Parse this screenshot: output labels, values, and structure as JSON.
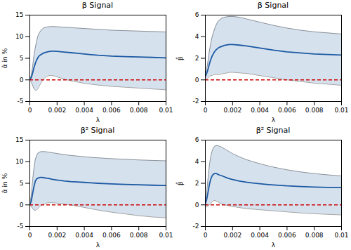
{
  "chart_data": [
    {
      "type": "line",
      "title": "β Signal",
      "xlabel": "λ",
      "ylabel": "α̂ in %",
      "x": [
        0,
        0.0001,
        0.0002,
        0.0003,
        0.0004,
        0.0005,
        0.0006,
        0.0007,
        0.0008,
        0.0009,
        0.001,
        0.0012,
        0.0014,
        0.0016,
        0.0018,
        0.002,
        0.0025,
        0.003,
        0.0035,
        0.004,
        0.0045,
        0.005,
        0.006,
        0.007,
        0.008,
        0.009,
        0.01
      ],
      "values": [
        0.1,
        0.5,
        1.5,
        2.8,
        3.8,
        4.6,
        5.2,
        5.6,
        5.8,
        6.0,
        6.2,
        6.4,
        6.55,
        6.65,
        6.65,
        6.6,
        6.45,
        6.3,
        6.15,
        6.0,
        5.85,
        5.7,
        5.5,
        5.4,
        5.3,
        5.2,
        5.1
      ],
      "upper": [
        0.2,
        1.0,
        3.0,
        5.5,
        7.5,
        9.0,
        10.2,
        10.9,
        11.4,
        11.7,
        12.0,
        12.2,
        12.3,
        12.35,
        12.35,
        12.3,
        12.2,
        12.1,
        12.0,
        11.9,
        11.8,
        11.7,
        11.5,
        11.4,
        11.3,
        11.2,
        11.1
      ],
      "lower": [
        -0.1,
        -0.5,
        -1.2,
        -2.0,
        -2.4,
        -2.4,
        -2.0,
        -1.4,
        -0.8,
        -0.3,
        0.2,
        0.7,
        1.0,
        1.0,
        0.9,
        0.7,
        0.2,
        -0.2,
        -0.5,
        -0.8,
        -1.0,
        -1.2,
        -1.5,
        -1.7,
        -1.9,
        -2.1,
        -2.3
      ],
      "color": "#1c5aa3",
      "hline": {
        "y": 0,
        "color": "#cc0000",
        "line_style": "dashed"
      },
      "xlim": [
        0,
        0.01
      ],
      "xticks": [
        0,
        0.002,
        0.004,
        0.006,
        0.008,
        0.01
      ],
      "ylim": [
        -5,
        15
      ],
      "yticks": [
        -5,
        0,
        5,
        10,
        15
      ],
      "grid": false
    },
    {
      "type": "line",
      "title": "β Signal",
      "xlabel": "λ",
      "ylabel": "β̂",
      "x": [
        0,
        0.0001,
        0.0002,
        0.0003,
        0.0004,
        0.0005,
        0.0006,
        0.0007,
        0.0008,
        0.0009,
        0.001,
        0.0012,
        0.0014,
        0.0016,
        0.0018,
        0.002,
        0.0025,
        0.003,
        0.0035,
        0.004,
        0.0045,
        0.005,
        0.006,
        0.007,
        0.008,
        0.009,
        0.01
      ],
      "values": [
        0.3,
        0.6,
        1.0,
        1.5,
        1.9,
        2.2,
        2.45,
        2.65,
        2.8,
        2.9,
        3.0,
        3.1,
        3.2,
        3.25,
        3.28,
        3.28,
        3.22,
        3.15,
        3.05,
        2.95,
        2.85,
        2.75,
        2.6,
        2.5,
        2.4,
        2.35,
        2.3
      ],
      "upper": [
        0.5,
        1.0,
        1.8,
        2.7,
        3.4,
        4.0,
        4.4,
        4.8,
        5.1,
        5.35,
        5.5,
        5.7,
        5.8,
        5.85,
        5.87,
        5.88,
        5.8,
        5.65,
        5.5,
        5.35,
        5.2,
        5.05,
        4.8,
        4.6,
        4.45,
        4.35,
        4.25
      ],
      "lower": [
        0.0,
        0.1,
        0.2,
        0.3,
        0.4,
        0.4,
        0.5,
        0.5,
        0.5,
        0.5,
        0.5,
        0.55,
        0.6,
        0.65,
        0.7,
        0.7,
        0.65,
        0.6,
        0.5,
        0.4,
        0.3,
        0.2,
        0.0,
        -0.15,
        -0.3,
        -0.4,
        -0.5
      ],
      "color": "#1c5aa3",
      "hline": {
        "y": 0,
        "color": "#cc0000",
        "line_style": "dashed"
      },
      "xlim": [
        0,
        0.01
      ],
      "xticks": [
        0,
        0.002,
        0.004,
        0.006,
        0.008,
        0.01
      ],
      "ylim": [
        -2,
        6
      ],
      "yticks": [
        -2,
        0,
        2,
        4,
        6
      ],
      "grid": false
    },
    {
      "type": "line",
      "title": "β² Signal",
      "xlabel": "λ",
      "ylabel": "α̂ in %",
      "x": [
        0,
        0.0001,
        0.0002,
        0.0003,
        0.0004,
        0.0005,
        0.0006,
        0.0007,
        0.0008,
        0.0009,
        0.001,
        0.0012,
        0.0014,
        0.0016,
        0.0018,
        0.002,
        0.0025,
        0.003,
        0.0035,
        0.004,
        0.0045,
        0.005,
        0.006,
        0.007,
        0.008,
        0.009,
        0.01
      ],
      "values": [
        0.1,
        0.8,
        2.5,
        4.2,
        5.5,
        6.0,
        6.2,
        6.3,
        6.35,
        6.35,
        6.3,
        6.2,
        6.1,
        5.95,
        5.85,
        5.75,
        5.55,
        5.4,
        5.3,
        5.2,
        5.1,
        5.0,
        4.85,
        4.75,
        4.65,
        4.55,
        4.5
      ],
      "upper": [
        0.3,
        2.0,
        5.5,
        8.5,
        10.5,
        11.5,
        12.0,
        12.2,
        12.3,
        12.35,
        12.35,
        12.3,
        12.2,
        12.1,
        12.0,
        11.9,
        11.65,
        11.45,
        11.3,
        11.15,
        11.0,
        10.9,
        10.7,
        10.55,
        10.4,
        10.3,
        10.2
      ],
      "lower": [
        0.0,
        -0.3,
        -0.8,
        -1.2,
        -1.3,
        -1.1,
        -0.8,
        -0.5,
        -0.2,
        0.0,
        0.2,
        0.4,
        0.5,
        0.5,
        0.45,
        0.4,
        0.2,
        0.0,
        -0.3,
        -0.6,
        -0.9,
        -1.2,
        -1.7,
        -2.1,
        -2.5,
        -2.8,
        -3.0
      ],
      "color": "#1c5aa3",
      "hline": {
        "y": 0,
        "color": "#cc0000",
        "line_style": "dashed"
      },
      "xlim": [
        0,
        0.01
      ],
      "xticks": [
        0,
        0.002,
        0.004,
        0.006,
        0.008,
        0.01
      ],
      "ylim": [
        -5,
        15
      ],
      "yticks": [
        -5,
        0,
        5,
        10,
        15
      ],
      "grid": false
    },
    {
      "type": "line",
      "title": "β² Signal",
      "xlabel": "λ",
      "ylabel": "β̂",
      "x": [
        0,
        0.0001,
        0.0002,
        0.0003,
        0.0004,
        0.0005,
        0.0006,
        0.0007,
        0.0008,
        0.0009,
        0.001,
        0.0012,
        0.0014,
        0.0016,
        0.0018,
        0.002,
        0.0025,
        0.003,
        0.0035,
        0.004,
        0.0045,
        0.005,
        0.006,
        0.007,
        0.008,
        0.009,
        0.01
      ],
      "values": [
        0.1,
        0.5,
        1.2,
        1.9,
        2.4,
        2.7,
        2.85,
        2.9,
        2.9,
        2.85,
        2.78,
        2.7,
        2.6,
        2.5,
        2.42,
        2.35,
        2.2,
        2.1,
        2.02,
        1.96,
        1.9,
        1.85,
        1.76,
        1.7,
        1.65,
        1.62,
        1.6
      ],
      "upper": [
        0.3,
        1.2,
        2.5,
        3.7,
        4.5,
        5.0,
        5.3,
        5.45,
        5.5,
        5.5,
        5.45,
        5.35,
        5.2,
        5.05,
        4.9,
        4.75,
        4.45,
        4.2,
        4.0,
        3.82,
        3.65,
        3.5,
        3.25,
        3.05,
        2.9,
        2.78,
        2.68
      ],
      "lower": [
        -0.1,
        -0.2,
        -0.1,
        0.0,
        0.1,
        0.3,
        0.4,
        0.4,
        0.35,
        0.3,
        0.2,
        0.1,
        0.0,
        -0.05,
        -0.1,
        -0.15,
        -0.25,
        -0.35,
        -0.4,
        -0.45,
        -0.5,
        -0.55,
        -0.65,
        -0.75,
        -0.82,
        -0.88,
        -0.93
      ],
      "color": "#1c5aa3",
      "hline": {
        "y": 0,
        "color": "#cc0000",
        "line_style": "dashed"
      },
      "xlim": [
        0,
        0.01
      ],
      "xticks": [
        0,
        0.002,
        0.004,
        0.006,
        0.008,
        0.01
      ],
      "ylim": [
        -2,
        6
      ],
      "yticks": [
        -2,
        0,
        2,
        4,
        6
      ],
      "grid": false
    }
  ]
}
